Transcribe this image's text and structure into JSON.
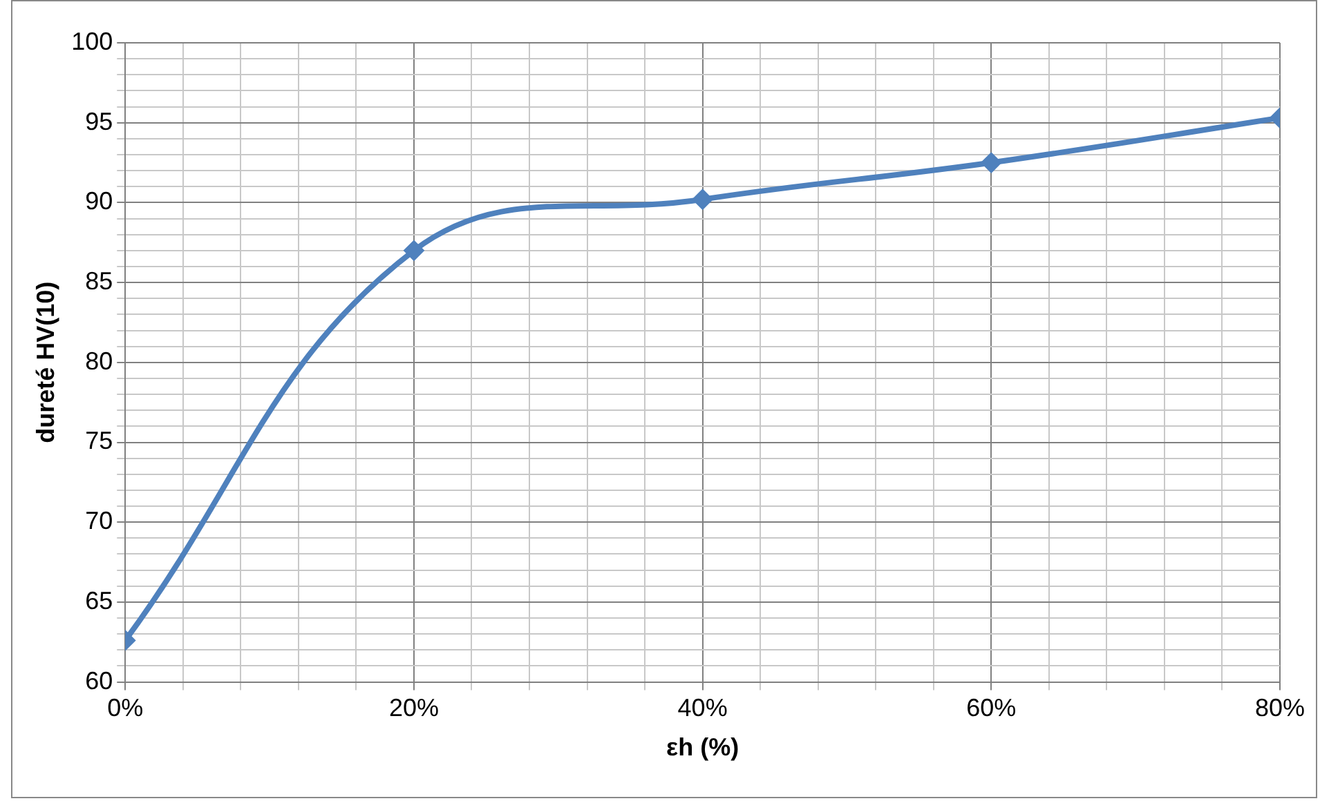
{
  "chart_data": {
    "type": "line",
    "xlabel": "εh (%)",
    "ylabel": "dureté HV(10)",
    "x": [
      0,
      20,
      40,
      60,
      80
    ],
    "series": [
      {
        "color": "#4f81bd",
        "values": [
          62.6,
          87.0,
          90.2,
          92.5,
          95.3
        ]
      }
    ],
    "xlim": [
      0,
      80
    ],
    "ylim": [
      60,
      100
    ],
    "xticks": [
      {
        "value": 0,
        "label": "0%"
      },
      {
        "value": 4,
        "label": null
      },
      {
        "value": 8,
        "label": null
      },
      {
        "value": 12,
        "label": null
      },
      {
        "value": 16,
        "label": null
      },
      {
        "value": 20,
        "label": "20%"
      },
      {
        "value": 24,
        "label": null
      },
      {
        "value": 28,
        "label": null
      },
      {
        "value": 32,
        "label": null
      },
      {
        "value": 36,
        "label": null
      },
      {
        "value": 40,
        "label": "40%"
      },
      {
        "value": 44,
        "label": null
      },
      {
        "value": 48,
        "label": null
      },
      {
        "value": 52,
        "label": null
      },
      {
        "value": 56,
        "label": null
      },
      {
        "value": 60,
        "label": "60%"
      },
      {
        "value": 64,
        "label": null
      },
      {
        "value": 68,
        "label": null
      },
      {
        "value": 72,
        "label": null
      },
      {
        "value": 76,
        "label": null
      },
      {
        "value": 80,
        "label": "80%"
      }
    ],
    "yticks": [
      60,
      {
        "value": 61,
        "label": null
      },
      {
        "value": 62,
        "label": null
      },
      {
        "value": 63,
        "label": null
      },
      {
        "value": 64,
        "label": null
      },
      65,
      {
        "value": 66,
        "label": null
      },
      {
        "value": 67,
        "label": null
      },
      {
        "value": 68,
        "label": null
      },
      {
        "value": 69,
        "label": null
      },
      70,
      {
        "value": 71,
        "label": null
      },
      {
        "value": 72,
        "label": null
      },
      {
        "value": 73,
        "label": null
      },
      {
        "value": 74,
        "label": null
      },
      75,
      {
        "value": 76,
        "label": null
      },
      {
        "value": 77,
        "label": null
      },
      {
        "value": 78,
        "label": null
      },
      {
        "value": 79,
        "label": null
      },
      80,
      {
        "value": 81,
        "label": null
      },
      {
        "value": 82,
        "label": null
      },
      {
        "value": 83,
        "label": null
      },
      {
        "value": 84,
        "label": null
      },
      85,
      {
        "value": 86,
        "label": null
      },
      {
        "value": 87,
        "label": null
      },
      {
        "value": 88,
        "label": null
      },
      {
        "value": 89,
        "label": null
      },
      90,
      {
        "value": 91,
        "label": null
      },
      {
        "value": 92,
        "label": null
      },
      {
        "value": 93,
        "label": null
      },
      {
        "value": 94,
        "label": null
      },
      95,
      {
        "value": 96,
        "label": null
      },
      {
        "value": 97,
        "label": null
      },
      {
        "value": 98,
        "label": null
      },
      {
        "value": 99,
        "label": null
      },
      100
    ],
    "grid": true,
    "legend": false,
    "marker": "diamond",
    "line_style": "solid"
  }
}
